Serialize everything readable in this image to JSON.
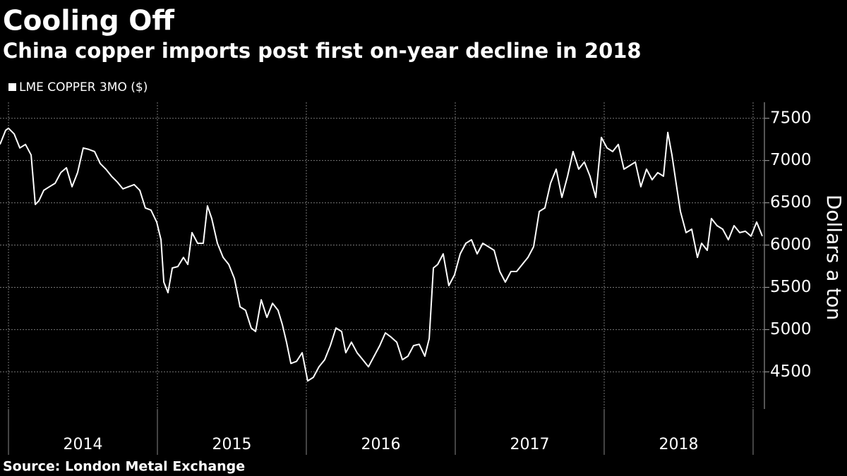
{
  "chart_data": {
    "type": "line",
    "title": "Cooling Off",
    "subtitle": "China copper imports post first on-year decline in 2018",
    "y_label": "Dollars a ton",
    "source": "Source: London Metal Exchange",
    "legend": "top-left",
    "grid": true,
    "x": [
      2013.943,
      2013.981,
      2014.0,
      2014.038,
      2014.076,
      2014.114,
      2014.152,
      2014.18,
      2014.204,
      2014.237,
      2014.275,
      2014.313,
      2014.351,
      2014.389,
      2014.427,
      2014.464,
      2014.502,
      2014.54,
      2014.578,
      2014.616,
      2014.654,
      2014.692,
      2014.73,
      2014.768,
      2014.806,
      2014.844,
      2014.882,
      2014.919,
      2014.957,
      2014.995,
      2015.024,
      2015.043,
      2015.071,
      2015.1,
      2015.137,
      2015.175,
      2015.204,
      2015.232,
      2015.27,
      2015.308,
      2015.336,
      2015.365,
      2015.403,
      2015.441,
      2015.479,
      2015.517,
      2015.555,
      2015.592,
      2015.63,
      2015.659,
      2015.697,
      2015.735,
      2015.773,
      2015.81,
      2015.839,
      2015.867,
      2015.896,
      2015.934,
      2015.972,
      2016.009,
      2016.047,
      2016.085,
      2016.123,
      2016.161,
      2016.199,
      2016.237,
      2016.265,
      2016.303,
      2016.341,
      2016.379,
      2016.417,
      2016.455,
      2016.493,
      2016.531,
      2016.569,
      2016.607,
      2016.645,
      2016.682,
      2016.72,
      2016.758,
      2016.796,
      2016.825,
      2016.853,
      2016.882,
      2016.919,
      2016.957,
      2016.995,
      2017.033,
      2017.071,
      2017.109,
      2017.147,
      2017.185,
      2017.223,
      2017.261,
      2017.299,
      2017.336,
      2017.374,
      2017.412,
      2017.45,
      2017.488,
      2017.526,
      2017.564,
      2017.602,
      2017.64,
      2017.678,
      2017.716,
      2017.754,
      2017.791,
      2017.829,
      2017.867,
      2017.905,
      2017.943,
      2017.981,
      2018.019,
      2018.057,
      2018.095,
      2018.133,
      2018.171,
      2018.209,
      2018.246,
      2018.284,
      2018.322,
      2018.36,
      2018.398,
      2018.427,
      2018.455,
      2018.483,
      2018.512,
      2018.55,
      2018.588,
      2018.626,
      2018.654,
      2018.692,
      2018.72,
      2018.758,
      2018.796,
      2018.834,
      2018.872,
      2018.91,
      2018.948,
      2018.986,
      2019.024,
      2019.062
    ],
    "series": [
      {
        "name": "LME COPPER 3MO ($)",
        "color": "#ffffff",
        "values": [
          7191,
          7358,
          7383,
          7316,
          7149,
          7191,
          7066,
          6481,
          6523,
          6648,
          6690,
          6731,
          6857,
          6915,
          6690,
          6857,
          7149,
          7132,
          7107,
          6965,
          6898,
          6815,
          6748,
          6665,
          6690,
          6715,
          6648,
          6439,
          6414,
          6272,
          6063,
          5562,
          5437,
          5729,
          5746,
          5854,
          5771,
          6147,
          6021,
          6021,
          6464,
          6314,
          6021,
          5854,
          5771,
          5604,
          5269,
          5228,
          5019,
          4977,
          5353,
          5144,
          5311,
          5228,
          5060,
          4851,
          4599,
          4624,
          4726,
          4392,
          4435,
          4560,
          4643,
          4810,
          5019,
          4977,
          4726,
          4851,
          4726,
          4643,
          4560,
          4685,
          4810,
          4961,
          4910,
          4851,
          4643,
          4685,
          4810,
          4826,
          4685,
          4894,
          5729,
          5771,
          5896,
          5520,
          5646,
          5896,
          6021,
          6063,
          5896,
          6021,
          5980,
          5938,
          5687,
          5562,
          5687,
          5687,
          5771,
          5854,
          5980,
          6397,
          6439,
          6731,
          6898,
          6564,
          6815,
          7107,
          6898,
          6982,
          6815,
          6564,
          7274,
          7149,
          7107,
          7191,
          6898,
          6940,
          6982,
          6690,
          6898,
          6773,
          6857,
          6815,
          7333,
          7066,
          6731,
          6397,
          6147,
          6188,
          5854,
          6021,
          5938,
          6314,
          6230,
          6188,
          6063,
          6230,
          6147,
          6164,
          6105,
          6272,
          6105
        ]
      }
    ],
    "xlim": [
      2013.943,
      2019.076
    ],
    "xticks": [
      {
        "value": 2014.5,
        "label": "2014"
      },
      {
        "value": 2015.5,
        "label": "2015"
      },
      {
        "value": 2016.5,
        "label": "2016"
      },
      {
        "value": 2017.5,
        "label": "2017"
      },
      {
        "value": 2018.5,
        "label": "2018"
      }
    ],
    "xgrid": [
      2014,
      2015,
      2016,
      2017,
      2018,
      2019
    ],
    "ylim": [
      4060,
      7690
    ],
    "yticks": [
      4500,
      5000,
      5500,
      6000,
      6500,
      7000,
      7500
    ]
  }
}
